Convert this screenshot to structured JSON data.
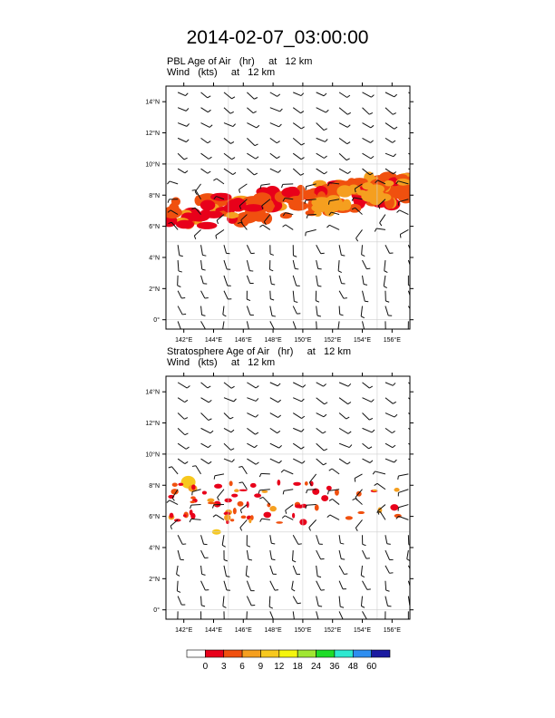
{
  "title": "2014-02-07_03:00:00",
  "panels": [
    {
      "field_label": "PBL Age of Air   (hr)     at   12 km",
      "wind_label": "Wind   (kts)     at   12 km"
    },
    {
      "field_label": "Stratosphere Age of Air   (hr)     at   12 km",
      "wind_label": "Wind   (kts)     at   12 km"
    }
  ],
  "map": {
    "lon_range": [
      140.8,
      157.2
    ],
    "lat_range": [
      -0.6,
      15.0
    ],
    "lon_ticks": [
      "142°E",
      "144°E",
      "146°E",
      "148°E",
      "150°E",
      "152°E",
      "154°E",
      "156°E"
    ],
    "lat_ticks": [
      "0°",
      "2°N",
      "4°N",
      "6°N",
      "8°N",
      "10°N",
      "12°N",
      "14°N"
    ],
    "grid": "dotted lines every 5°"
  },
  "colorbar": {
    "labels": [
      "0",
      "3",
      "6",
      "9",
      "12",
      "18",
      "24",
      "36",
      "48",
      "60"
    ],
    "colors": [
      "#ffffff",
      "#e8001a",
      "#f0500f",
      "#f59f1f",
      "#f7c81e",
      "#f5f50d",
      "#a0e632",
      "#1edc28",
      "#2ee8d0",
      "#2e8ef0",
      "#1a1aa0"
    ]
  }
}
